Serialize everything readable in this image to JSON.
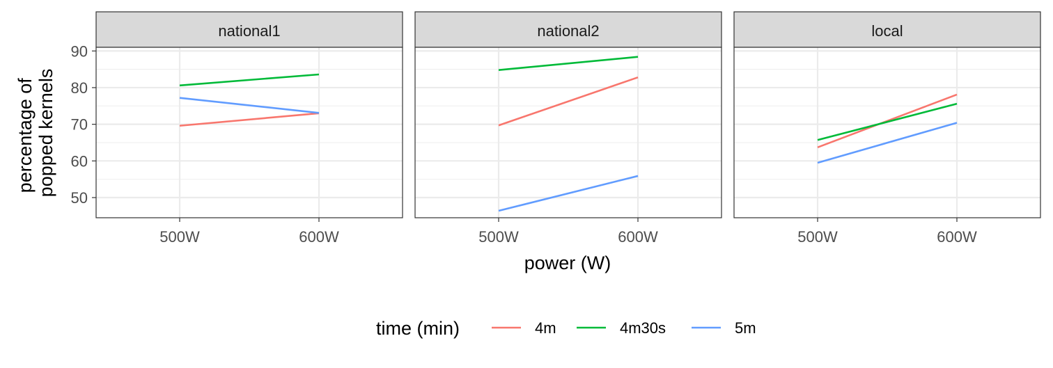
{
  "chart_data": {
    "type": "line",
    "categories": [
      "500W",
      "600W"
    ],
    "xlabel": "power (W)",
    "ylabel_lines": [
      "percentage of",
      "popped kernels"
    ],
    "ylim": [
      44.5,
      91
    ],
    "yticks": [
      50,
      60,
      70,
      80,
      90
    ],
    "grid": true,
    "legend": {
      "title": "time (min)",
      "placement": "bottom",
      "entries": [
        "4m",
        "4m30s",
        "5m"
      ]
    },
    "colors": {
      "4m": "#F8766D",
      "4m30s": "#00BA38",
      "5m": "#619CFF"
    },
    "facets": [
      {
        "label": "national1",
        "series": [
          {
            "name": "4m",
            "values": [
              69.6,
              73.0
            ]
          },
          {
            "name": "4m30s",
            "values": [
              80.6,
              83.6
            ]
          },
          {
            "name": "5m",
            "values": [
              77.2,
              73.1
            ]
          }
        ]
      },
      {
        "label": "national2",
        "series": [
          {
            "name": "4m",
            "values": [
              69.7,
              82.8
            ]
          },
          {
            "name": "4m30s",
            "values": [
              84.8,
              88.4
            ]
          },
          {
            "name": "5m",
            "values": [
              46.4,
              55.9
            ]
          }
        ]
      },
      {
        "label": "local",
        "series": [
          {
            "name": "4m",
            "values": [
              63.7,
              78.1
            ]
          },
          {
            "name": "4m30s",
            "values": [
              65.7,
              75.6
            ]
          },
          {
            "name": "5m",
            "values": [
              59.5,
              70.4
            ]
          }
        ]
      }
    ]
  }
}
